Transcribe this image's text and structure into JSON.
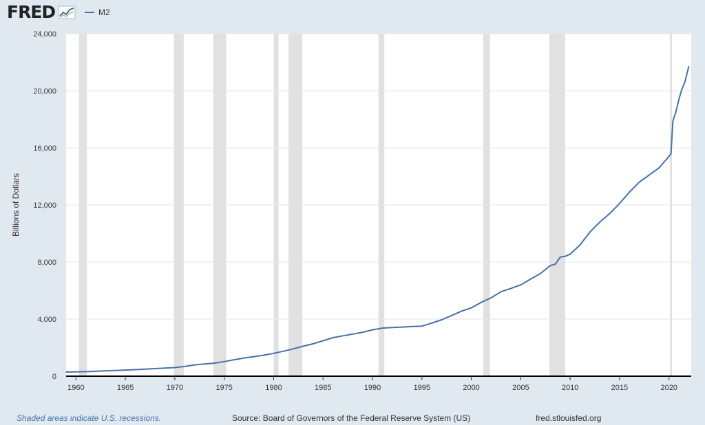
{
  "header": {
    "logo_text": "FRED",
    "logo_icon": "line-graph-icon",
    "legend_label": "M2"
  },
  "colors": {
    "series": "#4572a7",
    "recession": "#e1e1e1",
    "background": "#e1e9f0",
    "plot": "#ffffff"
  },
  "chart_data": {
    "type": "line",
    "title": "",
    "xlabel": "",
    "ylabel": "Billions of Dollars",
    "xlim": [
      1959,
      2022.25
    ],
    "ylim": [
      0,
      24000
    ],
    "x_ticks": [
      1960,
      1965,
      1970,
      1975,
      1980,
      1985,
      1990,
      1995,
      2000,
      2005,
      2010,
      2015,
      2020
    ],
    "x_tick_labels": [
      "1960",
      "1965",
      "1970",
      "1975",
      "1980",
      "1985",
      "1990",
      "1995",
      "2000",
      "2005",
      "2010",
      "2015",
      "2020"
    ],
    "y_ticks": [
      0,
      4000,
      8000,
      12000,
      16000,
      20000,
      24000
    ],
    "y_tick_labels": [
      "0",
      "4,000",
      "8,000",
      "12,000",
      "16,000",
      "20,000",
      "24,000"
    ],
    "grid": true,
    "legend": "top-left",
    "recessions": [
      [
        1960.3,
        1961.1
      ],
      [
        1969.9,
        1970.9
      ],
      [
        1973.9,
        1975.2
      ],
      [
        1980.0,
        1980.5
      ],
      [
        1981.5,
        1982.9
      ],
      [
        1990.6,
        1991.2
      ],
      [
        2001.2,
        2001.9
      ],
      [
        2007.9,
        2009.5
      ],
      [
        2020.1,
        2020.3
      ]
    ],
    "series": [
      {
        "name": "M2",
        "x": [
          1959.0,
          1960.0,
          1961.0,
          1962.0,
          1963.0,
          1964.0,
          1965.0,
          1966.0,
          1967.0,
          1968.0,
          1969.0,
          1970.0,
          1971.0,
          1972.0,
          1973.0,
          1974.0,
          1975.0,
          1976.0,
          1977.0,
          1978.0,
          1979.0,
          1980.0,
          1981.0,
          1982.0,
          1983.0,
          1984.0,
          1985.0,
          1986.0,
          1987.0,
          1988.0,
          1989.0,
          1990.0,
          1991.0,
          1992.0,
          1993.0,
          1994.0,
          1995.0,
          1996.0,
          1997.0,
          1998.0,
          1999.0,
          2000.0,
          2001.0,
          2002.0,
          2003.0,
          2004.0,
          2005.0,
          2006.0,
          2007.0,
          2008.0,
          2008.5,
          2009.0,
          2009.5,
          2010.0,
          2011.0,
          2012.0,
          2013.0,
          2014.0,
          2015.0,
          2016.0,
          2017.0,
          2018.0,
          2019.0,
          2020.0,
          2020.2,
          2020.4,
          2020.7,
          2021.0,
          2021.3,
          2021.6,
          2022.0
        ],
        "values": [
          290,
          300,
          320,
          340,
          370,
          400,
          430,
          460,
          490,
          530,
          570,
          600,
          680,
          790,
          860,
          910,
          1020,
          1150,
          1270,
          1370,
          1470,
          1600,
          1750,
          1920,
          2100,
          2270,
          2480,
          2700,
          2830,
          2950,
          3080,
          3250,
          3370,
          3410,
          3440,
          3480,
          3510,
          3720,
          3950,
          4250,
          4550,
          4790,
          5170,
          5490,
          5920,
          6150,
          6400,
          6800,
          7200,
          7750,
          7850,
          8350,
          8400,
          8550,
          9200,
          10100,
          10800,
          11400,
          12100,
          12900,
          13600,
          14100,
          14600,
          15400,
          15600,
          17900,
          18500,
          19400,
          20100,
          20600,
          21700
        ]
      }
    ]
  },
  "footer": {
    "note": "Shaded areas indicate U.S. recessions.",
    "source": "Source: Board of Governors of the Federal Reserve System (US)",
    "url": "fred.stlouisfed.org"
  }
}
